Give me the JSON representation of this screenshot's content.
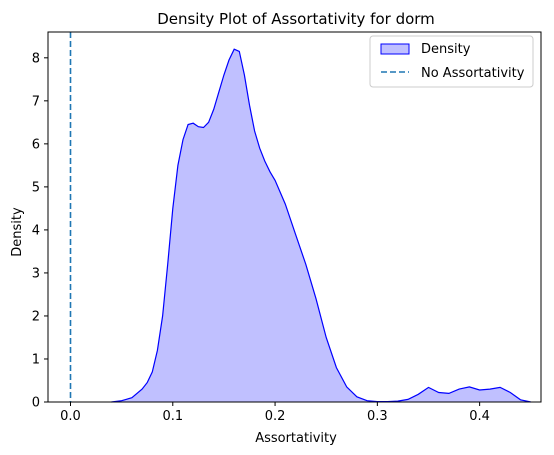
{
  "chart_data": {
    "type": "area",
    "title": "Density Plot of Assortativity for dorm",
    "xlabel": "Assortativity",
    "ylabel": "Density",
    "xlim": [
      -0.022,
      0.46
    ],
    "ylim": [
      0,
      8.6
    ],
    "xticks": [
      0.0,
      0.1,
      0.2,
      0.3,
      0.4
    ],
    "xtick_labels": [
      "0.0",
      "0.1",
      "0.2",
      "0.3",
      "0.4"
    ],
    "yticks": [
      0,
      1,
      2,
      3,
      4,
      5,
      6,
      7,
      8
    ],
    "ytick_labels": [
      "0",
      "1",
      "2",
      "3",
      "4",
      "5",
      "6",
      "7",
      "8"
    ],
    "grid": false,
    "legend_position": "top-right",
    "series": [
      {
        "name": "Density",
        "kind": "kde-area",
        "color": "#0000ff",
        "fill": "#c0c0ff",
        "x": [
          0.04,
          0.05,
          0.06,
          0.07,
          0.075,
          0.08,
          0.085,
          0.09,
          0.095,
          0.1,
          0.105,
          0.11,
          0.115,
          0.12,
          0.125,
          0.13,
          0.135,
          0.14,
          0.145,
          0.15,
          0.155,
          0.16,
          0.165,
          0.17,
          0.175,
          0.18,
          0.185,
          0.19,
          0.195,
          0.2,
          0.21,
          0.22,
          0.23,
          0.24,
          0.25,
          0.26,
          0.27,
          0.28,
          0.29,
          0.3,
          0.31,
          0.32,
          0.33,
          0.34,
          0.35,
          0.36,
          0.37,
          0.38,
          0.39,
          0.4,
          0.41,
          0.42,
          0.43,
          0.44,
          0.45
        ],
        "y": [
          0.0,
          0.03,
          0.1,
          0.3,
          0.45,
          0.7,
          1.2,
          2.0,
          3.2,
          4.5,
          5.5,
          6.1,
          6.45,
          6.48,
          6.4,
          6.38,
          6.5,
          6.8,
          7.2,
          7.6,
          7.95,
          8.2,
          8.15,
          7.6,
          6.9,
          6.3,
          5.9,
          5.6,
          5.35,
          5.15,
          4.6,
          3.9,
          3.2,
          2.4,
          1.5,
          0.8,
          0.35,
          0.12,
          0.03,
          0.01,
          0.01,
          0.02,
          0.06,
          0.18,
          0.34,
          0.22,
          0.2,
          0.3,
          0.35,
          0.28,
          0.3,
          0.34,
          0.22,
          0.05,
          0.0
        ]
      },
      {
        "name": "No Assortativity",
        "kind": "vline",
        "x": 0.0,
        "color": "#1f77b4",
        "style": "dashed"
      }
    ]
  }
}
